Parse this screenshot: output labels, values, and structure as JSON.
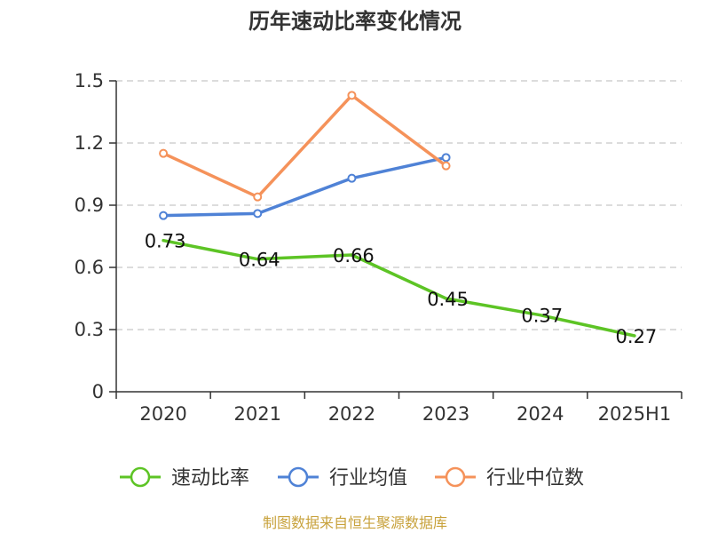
{
  "chart_data": {
    "type": "line",
    "title": "历年速动比率变化情况",
    "categories": [
      "2020",
      "2021",
      "2022",
      "2023",
      "2024",
      "2025H1"
    ],
    "yticks": [
      "0",
      "0.3",
      "0.6",
      "0.9",
      "1.2",
      "1.5"
    ],
    "ylim": [
      0,
      1.5
    ],
    "grid": true,
    "legend_position": "bottom",
    "series": [
      {
        "name": "速动比率",
        "color": "#5dc425",
        "values": [
          0.73,
          0.64,
          0.66,
          0.45,
          0.37,
          0.27
        ],
        "labels": [
          "0.73",
          "0.64",
          "0.66",
          "0.45",
          "0.37",
          "0.27"
        ],
        "markers": false
      },
      {
        "name": "行业均值",
        "color": "#4f82d6",
        "values": [
          0.85,
          0.86,
          1.03,
          1.13,
          null,
          null
        ],
        "markers": true
      },
      {
        "name": "行业中位数",
        "color": "#f5925a",
        "values": [
          1.15,
          0.94,
          1.43,
          1.09,
          null,
          null
        ],
        "markers": true
      }
    ],
    "source": "制图数据来自恒生聚源数据库"
  }
}
